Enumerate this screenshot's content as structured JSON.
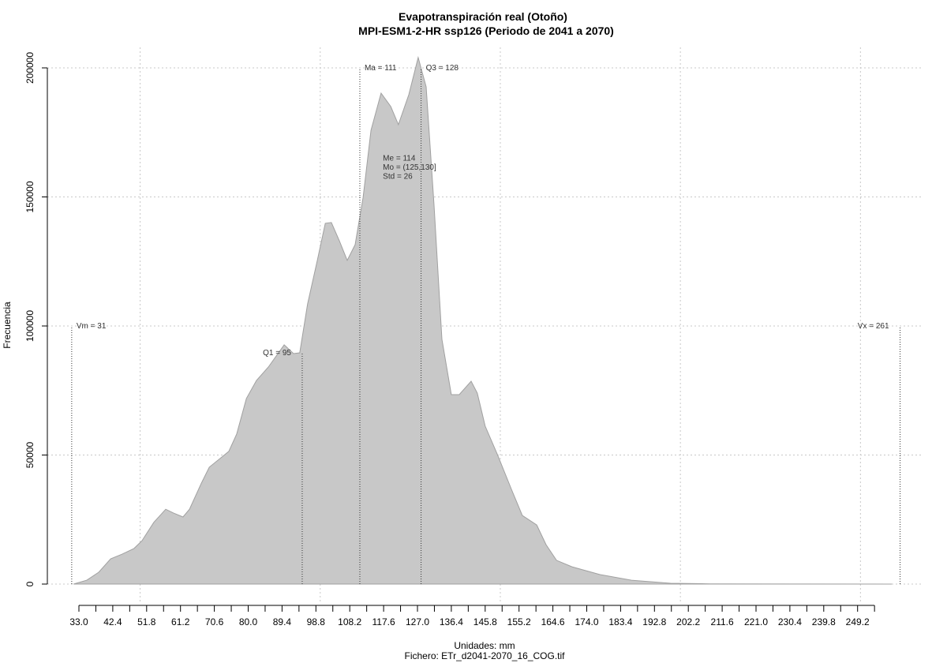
{
  "chart_data": {
    "type": "area",
    "title": "Evapotranspiración real (Otoño)",
    "subtitle": "MPI-ESM1-2-HR ssp126 (Periodo de 2041 a 2070)",
    "xlabel": "Unidades: mm",
    "caption": "Fichero: ETr_d2041-2070_16_COG.tif",
    "ylabel": "Frecuencia",
    "color": "#c8c8c8",
    "x": [
      31.5,
      35.2,
      38.5,
      41.8,
      45.0,
      48.3,
      50.5,
      53.8,
      57.1,
      59.3,
      61.9,
      63.7,
      67.0,
      69.2,
      72.4,
      74.6,
      76.8,
      79.5,
      82.3,
      85.6,
      90.0,
      92.6,
      94.3,
      96.5,
      99.2,
      101.4,
      103.1,
      105.3,
      107.5,
      109.7,
      111.9,
      114.1,
      116.9,
      119.6,
      121.7,
      124.6,
      127.2,
      129.4,
      131.6,
      133.8,
      136.4,
      138.6,
      141.9,
      143.6,
      145.8,
      149.1,
      153.1,
      156.1,
      160.1,
      162.7,
      165.6,
      169.9,
      177.6,
      186.4,
      197.3,
      208.3,
      230.2,
      258.7
    ],
    "values": [
      0,
      1500,
      4600,
      9800,
      11600,
      13800,
      16800,
      23900,
      29000,
      27500,
      26000,
      29000,
      39100,
      45300,
      48900,
      51400,
      58100,
      71900,
      78900,
      84100,
      92700,
      89300,
      89600,
      108600,
      125400,
      139800,
      140100,
      133000,
      125400,
      131500,
      149800,
      175800,
      190200,
      185000,
      178000,
      189600,
      204000,
      192700,
      146800,
      94800,
      73400,
      73400,
      78600,
      74000,
      61200,
      50500,
      36700,
      26600,
      22900,
      15300,
      9200,
      6700,
      3700,
      1500,
      300,
      100,
      20,
      0
    ],
    "xlim": [
      33.0,
      249.2
    ],
    "xticks": [
      {
        "value": 33.0,
        "label": "33.0"
      },
      {
        "value": 42.4,
        "label": "42.4"
      },
      {
        "value": 51.8,
        "label": "51.8"
      },
      {
        "value": 61.2,
        "label": "61.2"
      },
      {
        "value": 70.6,
        "label": "70.6"
      },
      {
        "value": 80.0,
        "label": "80.0"
      },
      {
        "value": 89.4,
        "label": "89.4"
      },
      {
        "value": 98.8,
        "label": "98.8"
      },
      {
        "value": 108.2,
        "label": "108.2"
      },
      {
        "value": 117.6,
        "label": "117.6"
      },
      {
        "value": 127.0,
        "label": "127.0"
      },
      {
        "value": 136.4,
        "label": "136.4"
      },
      {
        "value": 145.8,
        "label": "145.8"
      },
      {
        "value": 155.2,
        "label": "155.2"
      },
      {
        "value": 164.6,
        "label": "164.6"
      },
      {
        "value": 174.0,
        "label": "174.0"
      },
      {
        "value": 183.4,
        "label": "183.4"
      },
      {
        "value": 192.8,
        "label": "192.8"
      },
      {
        "value": 202.2,
        "label": "202.2"
      },
      {
        "value": 211.6,
        "label": "211.6"
      },
      {
        "value": 221.0,
        "label": "221.0"
      },
      {
        "value": 230.4,
        "label": "230.4"
      },
      {
        "value": 239.8,
        "label": "239.8"
      },
      {
        "value": 249.2,
        "label": "249.2"
      }
    ],
    "xgrid": [
      50,
      100,
      150,
      200,
      250
    ],
    "ylim": [
      0,
      200000
    ],
    "yticks": [
      0,
      50000,
      100000,
      150000,
      200000
    ],
    "grid": true,
    "annotations": [
      {
        "label": "Vm = 31",
        "x": 31,
        "y": 100000,
        "label_side": "right"
      },
      {
        "label": "Q1 = 95",
        "x": 95,
        "y": 89600,
        "label_side": "left"
      },
      {
        "label": "Ma = 111",
        "x": 111,
        "y": 200000,
        "label_side": "right"
      },
      {
        "label": "Q3 = 128",
        "x": 128,
        "y": 200000,
        "label_side": "right"
      },
      {
        "label": "Vx = 261",
        "x": 261,
        "y": 100000,
        "label_side": "left"
      }
    ],
    "stats": {
      "x": 117.4,
      "y": 164000,
      "lines": [
        "Me = 114",
        "Mo = (125,130]",
        "Std = 26"
      ]
    }
  }
}
